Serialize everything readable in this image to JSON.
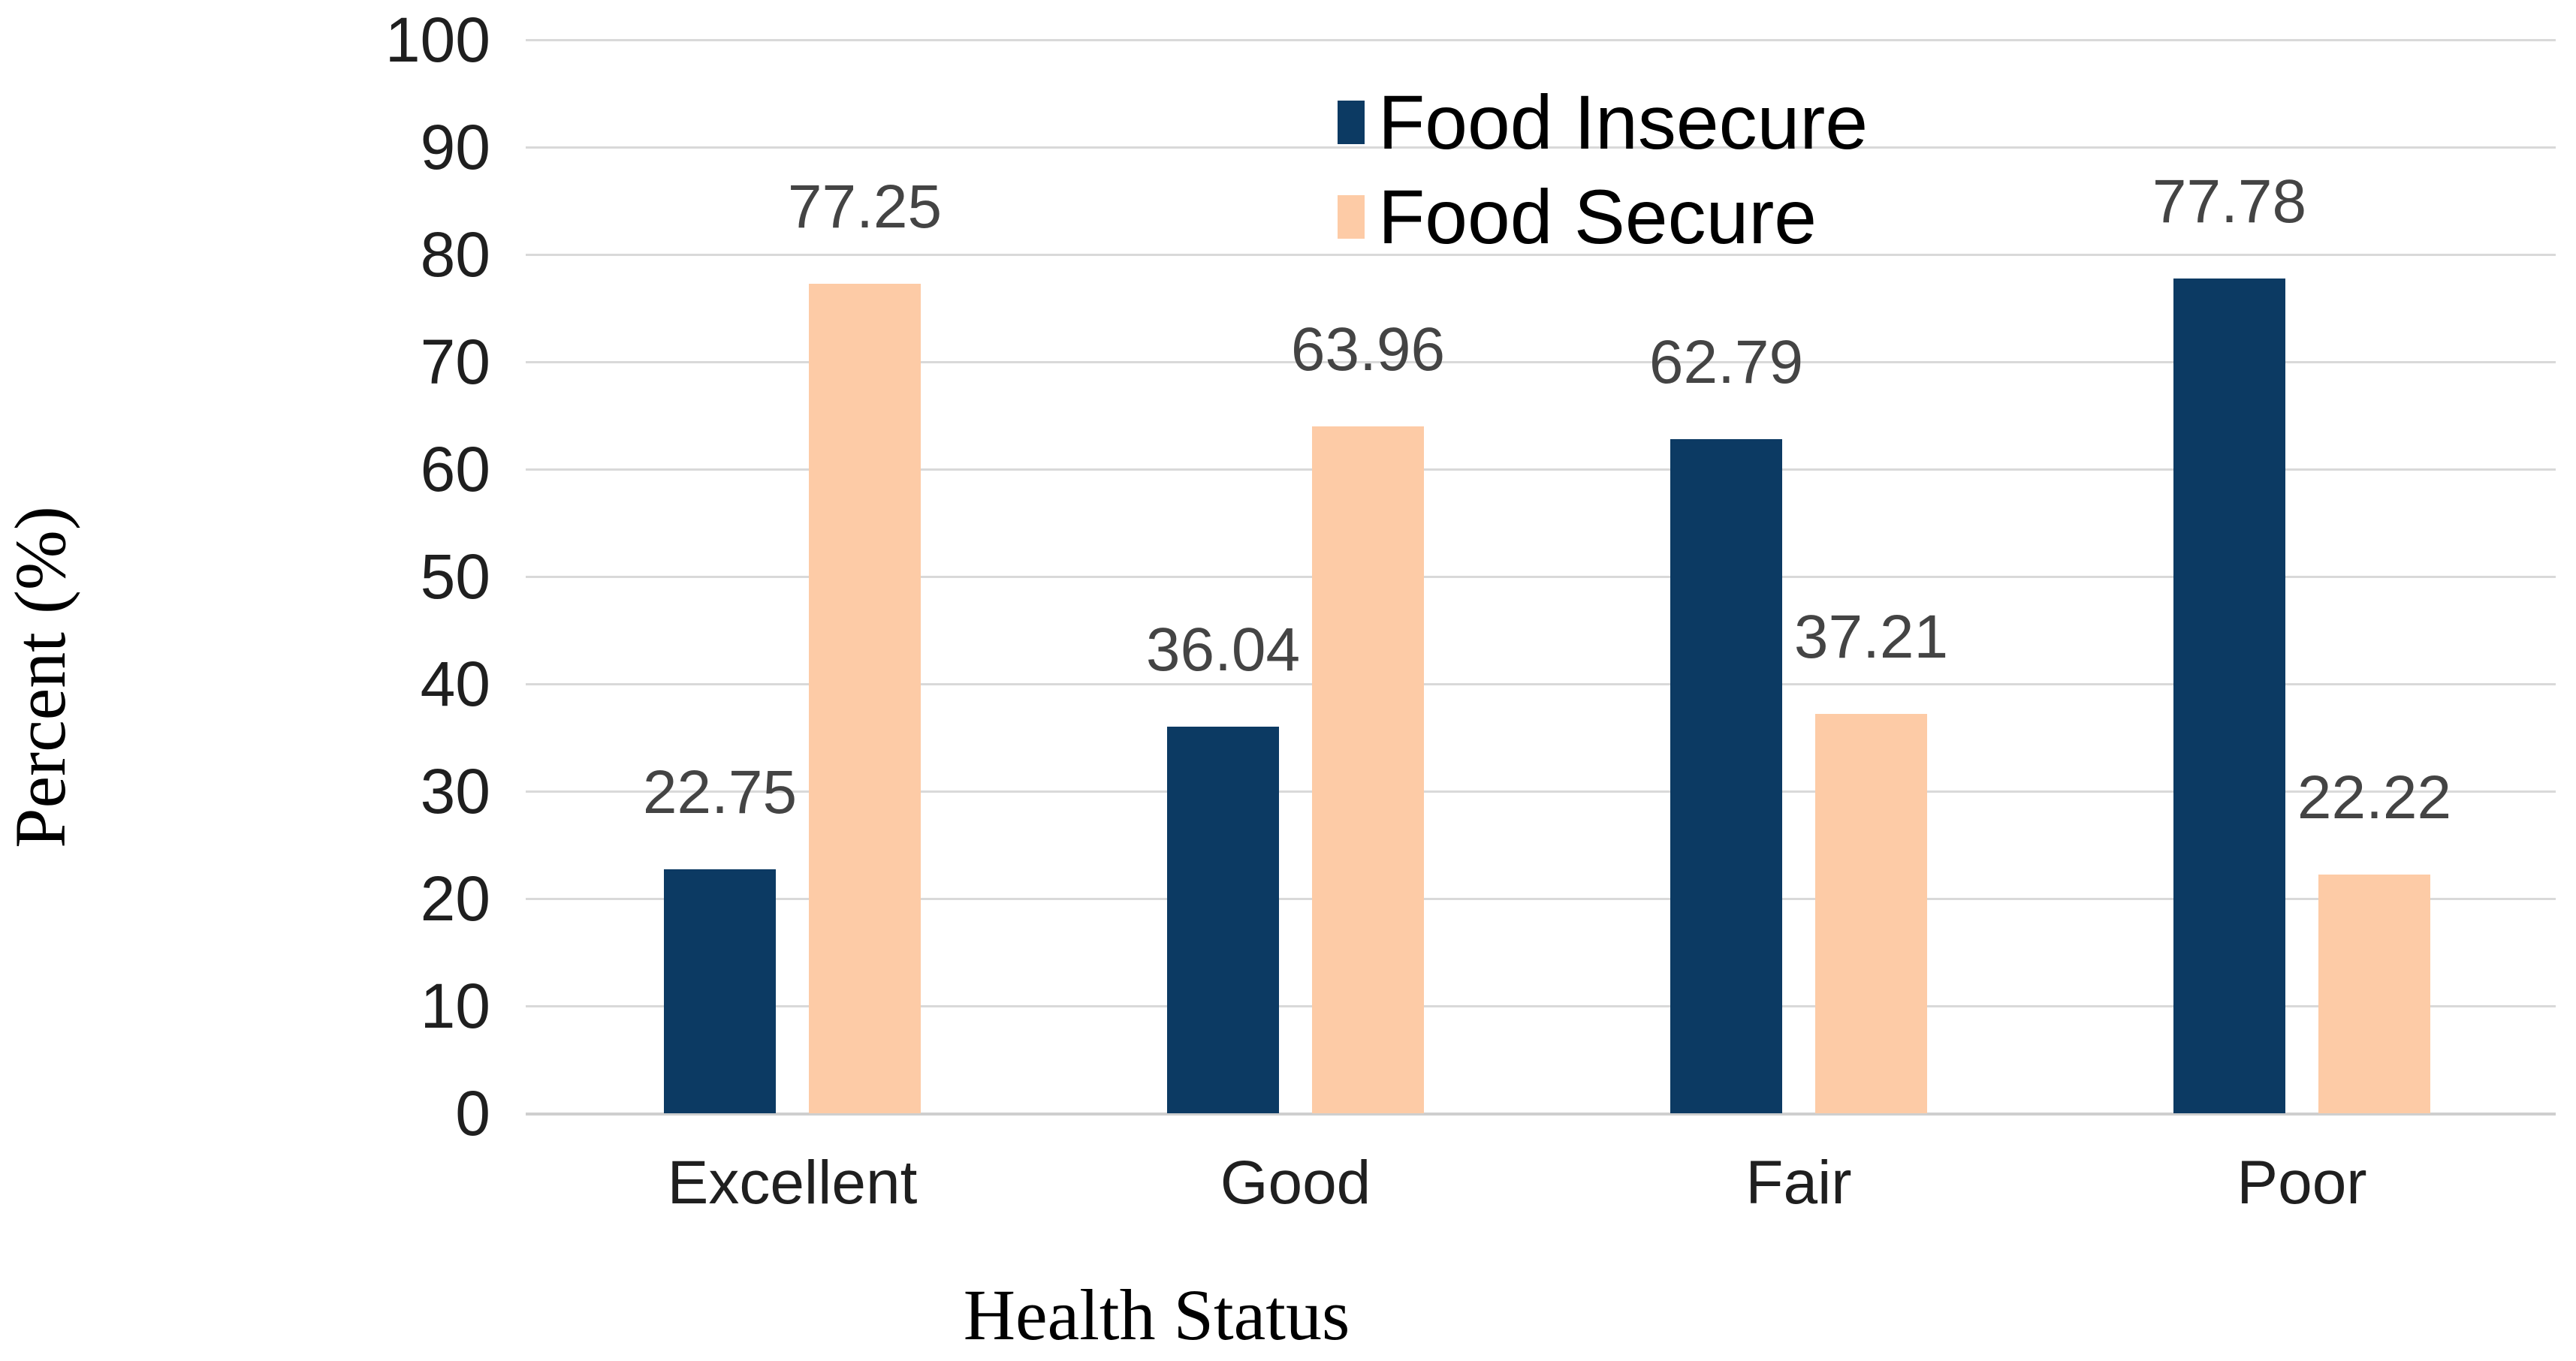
{
  "figure": {
    "background_color": "#FFFFFF"
  },
  "style": {
    "gridline_color": "#D9D9D9",
    "axis_line_color": "#CFCFCF",
    "tick_label_color": "#1F1F1F",
    "data_label_color": "#444444",
    "legend_text_color": "#000000"
  },
  "legend": {
    "items": [
      {
        "label": "Food Insecure",
        "swatch_color": "#0C3A63"
      },
      {
        "label": "Food Secure",
        "swatch_color": "#FDCBA6"
      }
    ]
  },
  "axes": {
    "y_title": "Percent (%)",
    "x_title": "Health Status",
    "y_tick_labels": [
      "0",
      "10",
      "20",
      "30",
      "40",
      "50",
      "60",
      "70",
      "80",
      "90",
      "100"
    ]
  },
  "chart_data": {
    "type": "bar",
    "title": "",
    "categories": [
      "Excellent",
      "Good",
      "Fair",
      "Poor"
    ],
    "series": [
      {
        "name": "Food Insecure",
        "color": "#0C3A63",
        "values": [
          22.75,
          36.04,
          62.79,
          77.78
        ]
      },
      {
        "name": "Food Secure",
        "color": "#FDCBA6",
        "values": [
          77.25,
          63.96,
          37.21,
          22.22
        ]
      }
    ],
    "data_labels": [
      "22.75",
      "77.25",
      "36.04",
      "63.96",
      "62.79",
      "37.21",
      "77.78",
      "22.22"
    ],
    "xlabel": "Health Status",
    "ylabel": "Percent (%)",
    "ylim": [
      0,
      100
    ],
    "ytick_step": 10,
    "grid": true,
    "legend_position": "top-center",
    "show_data_labels": true
  }
}
